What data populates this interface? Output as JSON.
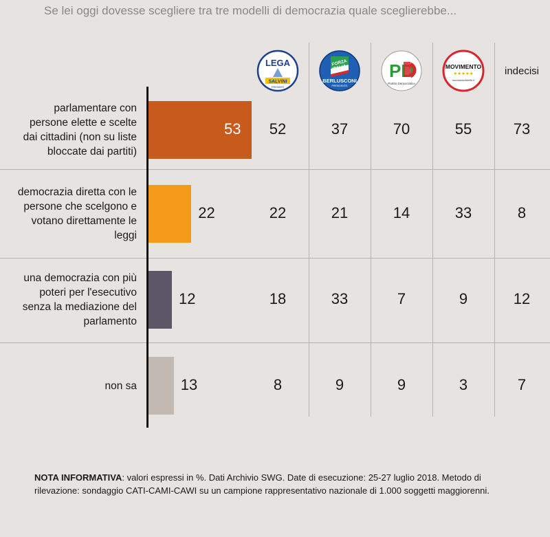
{
  "title": "Se lei oggi dovesse scegliere tra tre modelli di democrazia quale sceglierebbe...",
  "columns": [
    {
      "label": "",
      "icon": "lega-salvini-logo",
      "logo_text": [
        "LEGA",
        "SALVINI",
        "PREMIER"
      ]
    },
    {
      "label": "",
      "icon": "forza-italia-logo",
      "logo_text": [
        "FORZA",
        "ITALIA",
        "BERLUSCONI",
        "PRESIDENTE"
      ]
    },
    {
      "label": "",
      "icon": "pd-logo",
      "logo_text": [
        "PD",
        "Partito Democratico"
      ]
    },
    {
      "label": "",
      "icon": "movimento-5-stelle-logo",
      "logo_text": [
        "MOVIMENTO",
        "movimento5stelle.it"
      ]
    },
    {
      "label": "indecisi",
      "icon": ""
    }
  ],
  "colors": {
    "background": "#e6e3e0",
    "bars": [
      "#c85a1c",
      "#f39a1a",
      "#5c5766",
      "#c2b9b3"
    ],
    "first_bar_value_text": "#ffffff"
  },
  "chart_data": {
    "type": "bar",
    "orientation": "horizontal",
    "categories": [
      "parlamentare con persone elette e scelte dai cittadini (non su liste bloccate dai partiti)",
      "democrazia diretta con le persone che scelgono e votano direttamente le leggi",
      "una democrazia con più poteri per l'esecutivo senza la mediazione del parlamento",
      "non sa"
    ],
    "category_lines": [
      [
        "parlamentare con",
        "persone elette e scelte",
        "dai cittadini (non su liste",
        "bloccate dai partiti)"
      ],
      [
        "democrazia diretta con le",
        "persone che scelgono e",
        "votano direttamente le",
        "leggi"
      ],
      [
        "una democrazia con più",
        "poteri per l'esecutivo",
        "senza la mediazione del",
        "parlamento"
      ],
      [
        "non sa"
      ]
    ],
    "values": [
      53,
      22,
      12,
      13
    ],
    "unit": "%",
    "table": {
      "rows": [
        [
          52,
          37,
          70,
          55,
          73
        ],
        [
          22,
          21,
          14,
          33,
          8
        ],
        [
          18,
          33,
          7,
          9,
          12
        ],
        [
          8,
          9,
          9,
          3,
          7
        ]
      ]
    }
  },
  "note": {
    "bold": "NOTA INFORMATIVA",
    "text": ": valori espressi in %. Dati Archivio SWG. Date di esecuzione: 25-27 luglio 2018. Metodo di rilevazione: sondaggio CATI-CAMI-CAWI su un campione rappresentativo nazionale di 1.000 soggetti maggiorenni."
  }
}
